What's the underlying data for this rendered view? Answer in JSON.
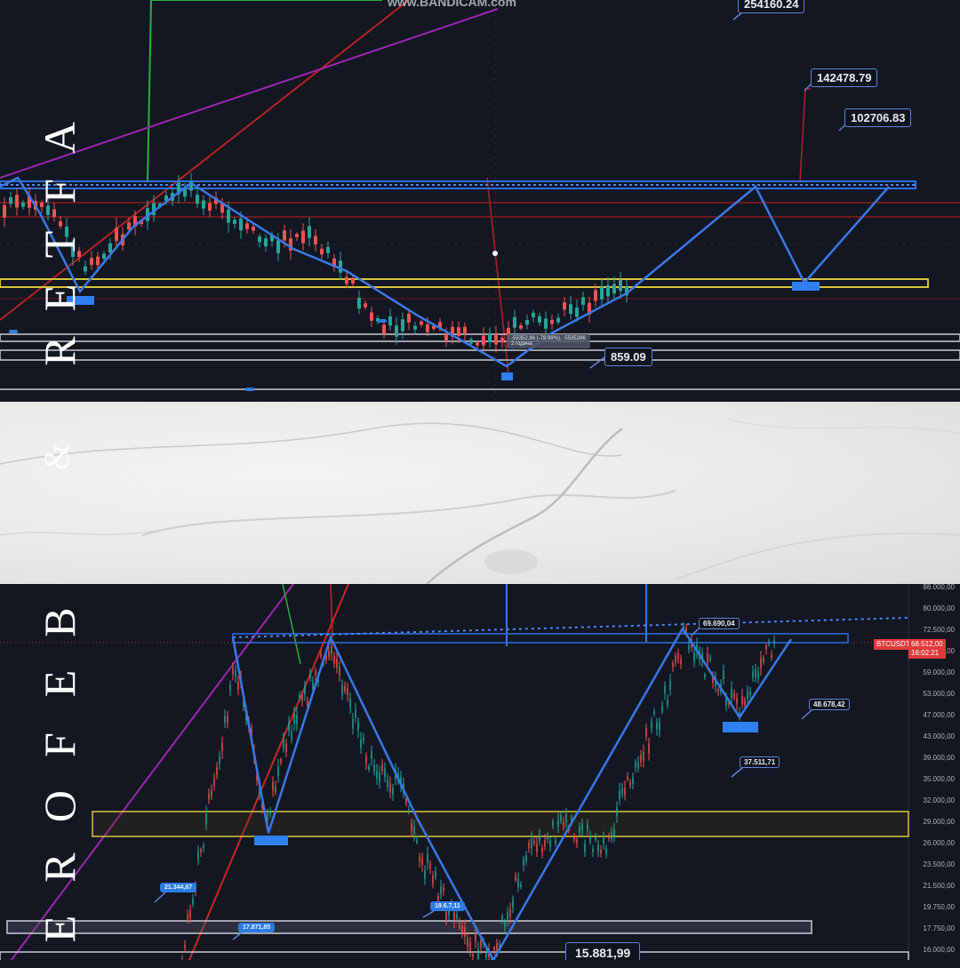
{
  "side_text": {
    "top_word": "AFTER",
    "connector": "&",
    "bottom_word": "BEFORE"
  },
  "watermark": "www.BANDICAM.com",
  "chart_data": [
    {
      "type": "line",
      "panel": "after",
      "title": "",
      "callouts": [
        "254160.24",
        "142478.79",
        "102706.83",
        "859.09"
      ],
      "tooltip": {
        "line1": "-55352.86 (-78.99%), -5535286",
        "line2": "2 година"
      },
      "zigzag_projection": "up-down-up path drawn from low toward resistance band",
      "bands": [
        "blue resistance band",
        "yellow support band",
        "white grey bands near bottom"
      ]
    },
    {
      "type": "line",
      "panel": "before",
      "symbol": "BTCUSDT",
      "current_price": "68.512,00",
      "countdown": "16:02:21",
      "y_axis_ticks": [
        "88.000,00",
        "80.000,00",
        "72.500,00",
        "65.000,00",
        "59.000,00",
        "53.000,00",
        "47.000,00",
        "43.000,00",
        "39.000,00",
        "35.000,00",
        "32.000,00",
        "29.000,00",
        "26.000,00",
        "23.500,00",
        "21.500,00",
        "19.750,00",
        "17.750,00",
        "16.000,00"
      ],
      "callouts": [
        "69.690,04",
        "48.678,42",
        "37.511,71",
        "21.344,87",
        "19.6.7,11",
        "17.871,85",
        "15.881,99"
      ]
    }
  ]
}
